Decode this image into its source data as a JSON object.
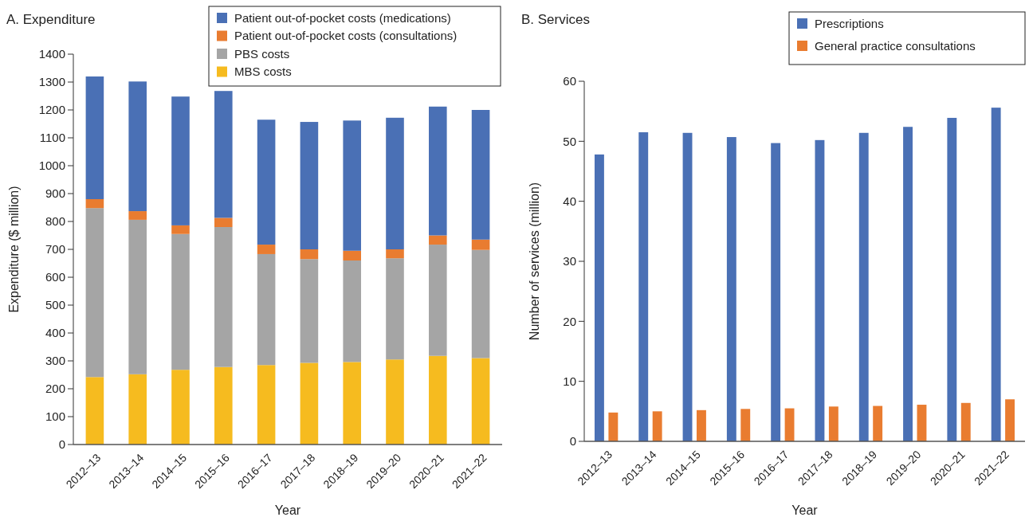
{
  "chart_data": [
    {
      "type": "bar",
      "title": "A. Expenditure",
      "xlabel": "Year",
      "ylabel": "Expenditure ($ million)",
      "stacked": true,
      "legend": "top right",
      "grid": false,
      "categories": [
        "2012–13",
        "2013–14",
        "2014–15",
        "2015–16",
        "2016–17",
        "2017–18",
        "2018–19",
        "2019–20",
        "2020–21",
        "2021–22"
      ],
      "ylim": [
        0,
        1400
      ],
      "yticks": [
        0,
        100,
        200,
        300,
        400,
        500,
        600,
        700,
        800,
        900,
        1000,
        1100,
        1200,
        1300,
        1400
      ],
      "series": [
        {
          "name": "MBS costs",
          "color": "#f6bb1f",
          "values": [
            242,
            252,
            268,
            278,
            285,
            293,
            296,
            305,
            318,
            310
          ]
        },
        {
          "name": "PBS costs",
          "color": "#a5a5a5",
          "values": [
            606,
            554,
            487,
            502,
            398,
            372,
            364,
            363,
            399,
            388
          ]
        },
        {
          "name": "Patient out-of-pocket costs (consultations)",
          "color": "#e97c30",
          "values": [
            32,
            31,
            31,
            33,
            34,
            35,
            35,
            32,
            33,
            37
          ]
        },
        {
          "name": "Patient out-of-pocket costs (medications)",
          "color": "#4a70b5",
          "values": [
            440,
            465,
            462,
            455,
            448,
            457,
            467,
            472,
            462,
            465
          ]
        }
      ]
    },
    {
      "type": "bar",
      "title": "B. Services",
      "xlabel": "Year",
      "ylabel": "Number of services (million)",
      "legend": "top right",
      "grid": false,
      "categories": [
        "2012–13",
        "2013–14",
        "2014–15",
        "2015–16",
        "2016–17",
        "2017–18",
        "2018–19",
        "2019–20",
        "2020–21",
        "2021–22"
      ],
      "ylim": [
        0,
        60
      ],
      "yticks": [
        0,
        10,
        20,
        30,
        40,
        50,
        60
      ],
      "series": [
        {
          "name": "Prescriptions",
          "color": "#4a70b5",
          "values": [
            47.8,
            51.5,
            51.4,
            50.7,
            49.7,
            50.2,
            51.4,
            52.4,
            53.9,
            55.6
          ]
        },
        {
          "name": "General practice consultations",
          "color": "#e97c30",
          "values": [
            4.8,
            5.0,
            5.2,
            5.4,
            5.5,
            5.8,
            5.9,
            6.1,
            6.4,
            7.0
          ]
        }
      ]
    }
  ]
}
